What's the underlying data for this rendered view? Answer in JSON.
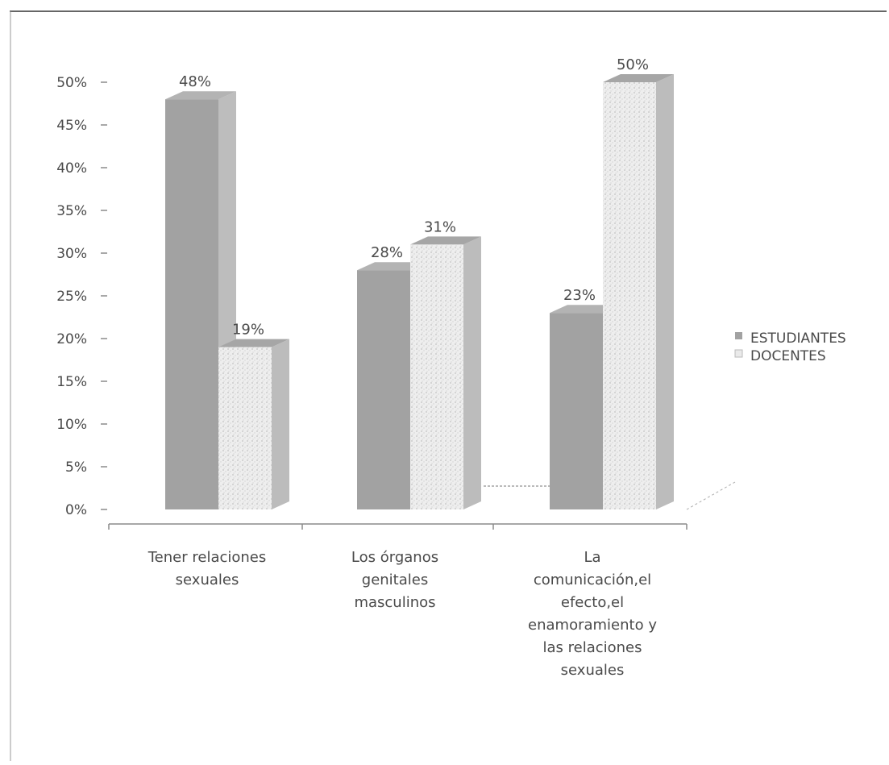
{
  "chart_data": {
    "type": "bar",
    "title": "",
    "xlabel": "",
    "ylabel": "",
    "ylim": [
      0,
      50
    ],
    "yticks": [
      "0%",
      "5%",
      "10%",
      "15%",
      "20%",
      "25%",
      "30%",
      "35%",
      "40%",
      "45%",
      "50%"
    ],
    "categories": [
      [
        "Tener relaciones",
        "sexuales"
      ],
      [
        "Los órganos",
        "genitales",
        "masculinos"
      ],
      [
        "La",
        "comunicación,el",
        "efecto,el",
        "enamoramiento y",
        "las relaciones",
        "sexuales"
      ]
    ],
    "series": [
      {
        "name": "ESTUDIANTES",
        "values": [
          48,
          28,
          23
        ],
        "labels": [
          "48%",
          "28%",
          "23%"
        ]
      },
      {
        "name": "DOCENTES",
        "values": [
          19,
          31,
          50
        ],
        "labels": [
          "19%",
          "31%",
          "50%"
        ]
      }
    ],
    "legend_position": "right",
    "grid": false,
    "three_d": true
  },
  "colors": {
    "estudiantes_front": "#a2a2a2",
    "estudiantes_side": "#bdbdbd",
    "estudiantes_top": "#b3b3b3",
    "docentes_front": "#eaeaea",
    "docentes_side": "#bcbcbc",
    "docentes_top": "#a6a6a6",
    "axis": "#8a8a8a",
    "text": "#4a4a4a"
  }
}
